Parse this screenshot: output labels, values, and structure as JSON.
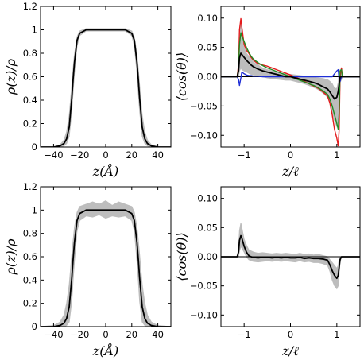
{
  "colors": {
    "band": "#bdbdbd",
    "mean": "#000000",
    "red": "#e41a1c",
    "green": "#228b22",
    "blue": "#1f2fd6",
    "zero_line": "#1f2fd6"
  },
  "chart_data": [
    {
      "type": "area",
      "panel": "top-left",
      "xlabel": "z(Å)",
      "ylabel": "ρ(z)/ρ",
      "xlim": [
        -50,
        50
      ],
      "ylim": [
        0,
        1.2
      ],
      "xticks": [
        -40,
        -20,
        0,
        20,
        40
      ],
      "yticks": [
        0.0,
        0.2,
        0.4,
        0.6,
        0.8,
        1.0,
        1.2
      ],
      "x": [
        -50,
        -40,
        -35,
        -32,
        -30,
        -28,
        -26,
        -25,
        -24,
        -22,
        -20,
        -15,
        -10,
        -5,
        0,
        5,
        10,
        15,
        20,
        22,
        24,
        25,
        26,
        28,
        30,
        32,
        35,
        40,
        50
      ],
      "series": [
        {
          "role": "mean",
          "values": [
            0,
            0,
            0.01,
            0.03,
            0.07,
            0.17,
            0.42,
            0.58,
            0.72,
            0.91,
            0.97,
            1.0,
            1.0,
            1.0,
            1.0,
            1.0,
            1.0,
            1.0,
            0.97,
            0.91,
            0.72,
            0.58,
            0.42,
            0.17,
            0.07,
            0.03,
            0.01,
            0,
            0
          ]
        },
        {
          "role": "band-upper",
          "values": [
            0,
            0,
            0.02,
            0.06,
            0.13,
            0.27,
            0.53,
            0.67,
            0.79,
            0.94,
            0.99,
            1.01,
            1.01,
            1.01,
            1.01,
            1.01,
            1.01,
            1.01,
            0.99,
            0.94,
            0.79,
            0.67,
            0.53,
            0.27,
            0.13,
            0.06,
            0.02,
            0,
            0
          ]
        },
        {
          "role": "band-lower",
          "values": [
            0,
            0,
            0,
            0.01,
            0.03,
            0.09,
            0.31,
            0.47,
            0.63,
            0.86,
            0.95,
            0.99,
            0.99,
            0.99,
            0.99,
            0.99,
            0.99,
            0.99,
            0.95,
            0.86,
            0.63,
            0.47,
            0.31,
            0.09,
            0.03,
            0.01,
            0,
            0,
            0
          ]
        }
      ]
    },
    {
      "type": "line",
      "panel": "top-right",
      "xlabel": "z/ℓ",
      "ylabel": "⟨cos(θ)⟩",
      "xlim": [
        -1.5,
        1.5
      ],
      "ylim": [
        -0.12,
        0.12
      ],
      "xticks": [
        -1,
        0,
        1
      ],
      "yticks": [
        -0.1,
        -0.05,
        0.0,
        0.05,
        0.1
      ],
      "x": [
        -1.5,
        -1.2,
        -1.15,
        -1.12,
        -1.1,
        -1.07,
        -1.05,
        -1.0,
        -0.95,
        -0.9,
        -0.85,
        -0.8,
        -0.7,
        -0.6,
        -0.5,
        -0.4,
        -0.3,
        -0.2,
        -0.1,
        0.0,
        0.1,
        0.2,
        0.3,
        0.4,
        0.5,
        0.6,
        0.7,
        0.8,
        0.85,
        0.9,
        0.95,
        1.0,
        1.03,
        1.05,
        1.07,
        1.1,
        1.12,
        1.15,
        1.2,
        1.5
      ],
      "series": [
        {
          "role": "band-upper",
          "values": [
            0,
            0,
            0.0,
            0.015,
            0.06,
            0.088,
            0.07,
            0.05,
            0.04,
            0.035,
            0.03,
            0.025,
            0.02,
            0.015,
            0.012,
            0.01,
            0.008,
            0.006,
            0.005,
            0.004,
            0.003,
            0.002,
            0.001,
            0.0,
            -0.001,
            -0.002,
            -0.003,
            -0.005,
            -0.008,
            -0.012,
            -0.02,
            -0.02,
            -0.01,
            0.005,
            0.012,
            0.012,
            0.0,
            0,
            0,
            0
          ]
        },
        {
          "role": "band-lower",
          "values": [
            0,
            0,
            0.0,
            0.0,
            0.01,
            0.015,
            0.012,
            0.01,
            0.008,
            0.006,
            0.004,
            0.003,
            0.002,
            0.0,
            -0.002,
            -0.003,
            -0.004,
            -0.005,
            -0.006,
            -0.006,
            -0.008,
            -0.01,
            -0.012,
            -0.015,
            -0.018,
            -0.022,
            -0.028,
            -0.035,
            -0.045,
            -0.06,
            -0.075,
            -0.085,
            -0.075,
            -0.05,
            -0.01,
            -0.005,
            0.0,
            0,
            0,
            0
          ]
        },
        {
          "role": "red",
          "values": [
            0,
            0,
            0.0,
            0.02,
            0.08,
            0.099,
            0.085,
            0.055,
            0.045,
            0.04,
            0.033,
            0.028,
            0.022,
            0.02,
            0.018,
            0.015,
            0.012,
            0.009,
            0.006,
            0.003,
            0.0,
            -0.004,
            -0.008,
            -0.012,
            -0.016,
            -0.02,
            -0.026,
            -0.033,
            -0.045,
            -0.065,
            -0.09,
            -0.105,
            -0.118,
            -0.09,
            0.0,
            0.015,
            0.0,
            0,
            0,
            0
          ]
        },
        {
          "role": "green",
          "values": [
            0,
            0,
            0.0,
            0.015,
            0.055,
            0.075,
            0.07,
            0.06,
            0.05,
            0.042,
            0.035,
            0.03,
            0.024,
            0.019,
            0.015,
            0.012,
            0.009,
            0.006,
            0.003,
            0.0,
            -0.003,
            -0.006,
            -0.009,
            -0.012,
            -0.015,
            -0.019,
            -0.024,
            -0.03,
            -0.038,
            -0.05,
            -0.065,
            -0.08,
            -0.09,
            -0.06,
            0.01,
            0.012,
            0.0,
            0,
            0,
            0
          ]
        },
        {
          "role": "blue",
          "values": [
            0,
            0,
            0.0,
            -0.005,
            -0.015,
            -0.002,
            0.008,
            0.005,
            0.003,
            0.002,
            0.002,
            0.001,
            0.001,
            0.0,
            0.0,
            0.0,
            0.0,
            0.0,
            0.0,
            0.0,
            0.0,
            0.0,
            0.0,
            0.0,
            0.0,
            0.0,
            0.0,
            0.0,
            0.0,
            0.0,
            0.005,
            0.01,
            0.012,
            -0.005,
            -0.008,
            0.0,
            0.0,
            0,
            0,
            0
          ]
        },
        {
          "role": "mean",
          "values": [
            0,
            0,
            0.0,
            0.01,
            0.032,
            0.04,
            0.038,
            0.033,
            0.028,
            0.024,
            0.02,
            0.017,
            0.013,
            0.01,
            0.008,
            0.006,
            0.004,
            0.002,
            0.0,
            0.0,
            -0.002,
            -0.004,
            -0.006,
            -0.008,
            -0.01,
            -0.013,
            -0.017,
            -0.021,
            -0.026,
            -0.032,
            -0.038,
            -0.035,
            -0.025,
            -0.012,
            0.0,
            0.0,
            0.0,
            0,
            0,
            0
          ]
        }
      ]
    },
    {
      "type": "area",
      "panel": "bottom-left",
      "xlabel": "z(Å)",
      "ylabel": "ρ(z)/ρ",
      "xlim": [
        -50,
        50
      ],
      "ylim": [
        0,
        1.2
      ],
      "xticks": [
        -40,
        -20,
        0,
        20,
        40
      ],
      "yticks": [
        0.0,
        0.2,
        0.4,
        0.6,
        0.8,
        1.0,
        1.2
      ],
      "x": [
        -50,
        -40,
        -35,
        -32,
        -30,
        -28,
        -26,
        -25,
        -24,
        -22,
        -20,
        -15,
        -10,
        -5,
        0,
        5,
        10,
        15,
        20,
        22,
        24,
        25,
        26,
        28,
        30,
        32,
        35,
        40,
        50
      ],
      "series": [
        {
          "role": "mean",
          "values": [
            0,
            0,
            0.01,
            0.03,
            0.07,
            0.17,
            0.42,
            0.58,
            0.72,
            0.91,
            0.97,
            1.0,
            1.0,
            1.0,
            1.0,
            1.0,
            1.0,
            1.0,
            0.97,
            0.91,
            0.72,
            0.58,
            0.42,
            0.17,
            0.07,
            0.03,
            0.01,
            0,
            0
          ]
        },
        {
          "role": "band-upper",
          "values": [
            0,
            0.01,
            0.04,
            0.1,
            0.2,
            0.36,
            0.62,
            0.74,
            0.85,
            0.98,
            1.03,
            1.05,
            1.07,
            1.05,
            1.08,
            1.04,
            1.07,
            1.05,
            1.03,
            0.98,
            0.85,
            0.74,
            0.62,
            0.36,
            0.2,
            0.1,
            0.04,
            0.01,
            0
          ]
        },
        {
          "role": "band-lower",
          "values": [
            0,
            0,
            0,
            0,
            0.01,
            0.04,
            0.22,
            0.4,
            0.56,
            0.82,
            0.91,
            0.95,
            0.94,
            0.96,
            0.93,
            0.95,
            0.94,
            0.95,
            0.91,
            0.82,
            0.56,
            0.4,
            0.22,
            0.04,
            0.01,
            0,
            0,
            0,
            0
          ]
        }
      ]
    },
    {
      "type": "line",
      "panel": "bottom-right",
      "xlabel": "z/ℓ",
      "ylabel": "⟨cos(θ)⟩",
      "xlim": [
        -1.5,
        1.5
      ],
      "ylim": [
        -0.12,
        0.12
      ],
      "xticks": [
        -1,
        0,
        1
      ],
      "yticks": [
        -0.1,
        -0.05,
        0.0,
        0.05,
        0.1
      ],
      "x": [
        -1.5,
        -1.2,
        -1.15,
        -1.12,
        -1.1,
        -1.07,
        -1.05,
        -1.0,
        -0.95,
        -0.9,
        -0.85,
        -0.8,
        -0.7,
        -0.6,
        -0.5,
        -0.4,
        -0.3,
        -0.2,
        -0.1,
        0.0,
        0.1,
        0.2,
        0.3,
        0.4,
        0.5,
        0.6,
        0.7,
        0.8,
        0.85,
        0.9,
        0.95,
        1.0,
        1.03,
        1.05,
        1.07,
        1.1,
        1.12,
        1.15,
        1.2,
        1.5
      ],
      "series": [
        {
          "role": "band-upper",
          "values": [
            0,
            0,
            0.0,
            0.015,
            0.045,
            0.058,
            0.05,
            0.03,
            0.02,
            0.012,
            0.01,
            0.008,
            0.006,
            0.007,
            0.006,
            0.005,
            0.006,
            0.005,
            0.006,
            0.005,
            0.004,
            0.006,
            0.004,
            0.005,
            0.003,
            0.004,
            0.002,
            0.0,
            -0.005,
            -0.01,
            -0.015,
            -0.02,
            -0.015,
            -0.005,
            0.0,
            0.0,
            0.0,
            0,
            0,
            0
          ]
        },
        {
          "role": "band-lower",
          "values": [
            0,
            0,
            0.0,
            0.0,
            0.01,
            0.018,
            0.015,
            0.008,
            0.0,
            -0.005,
            -0.007,
            -0.008,
            -0.009,
            -0.008,
            -0.007,
            -0.008,
            -0.007,
            -0.008,
            -0.007,
            -0.008,
            -0.009,
            -0.007,
            -0.009,
            -0.008,
            -0.01,
            -0.01,
            -0.012,
            -0.015,
            -0.025,
            -0.04,
            -0.05,
            -0.055,
            -0.05,
            -0.03,
            -0.01,
            0.0,
            0.0,
            0,
            0,
            0
          ]
        },
        {
          "role": "mean",
          "values": [
            0,
            0,
            0.0,
            0.008,
            0.028,
            0.036,
            0.032,
            0.018,
            0.008,
            0.002,
            0.0,
            -0.001,
            -0.002,
            -0.001,
            -0.001,
            -0.002,
            -0.001,
            -0.002,
            -0.001,
            -0.002,
            -0.002,
            -0.001,
            -0.003,
            -0.002,
            -0.003,
            -0.003,
            -0.004,
            -0.006,
            -0.014,
            -0.024,
            -0.032,
            -0.037,
            -0.032,
            -0.018,
            -0.005,
            0.0,
            0.0,
            0,
            0,
            0
          ]
        }
      ]
    }
  ]
}
